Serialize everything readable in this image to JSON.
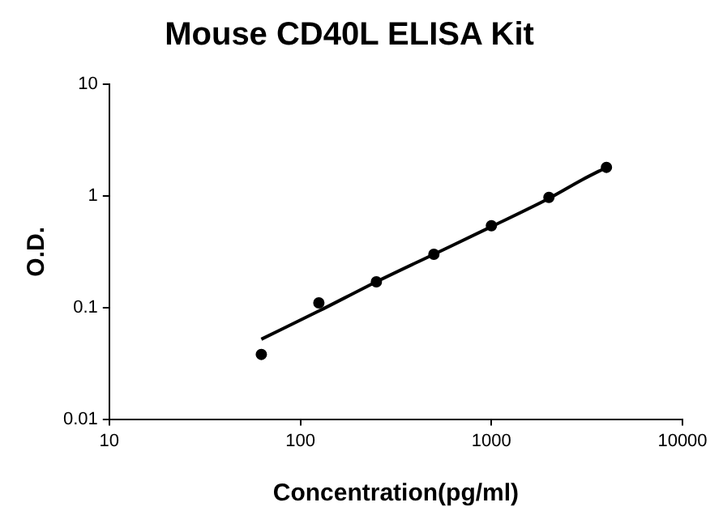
{
  "chart_data": {
    "type": "scatter",
    "title": "Mouse CD40L ELISA Kit",
    "xlabel": "Concentration(pg/ml)",
    "ylabel": "O.D.",
    "log": "xy",
    "xlim": [
      10,
      10000
    ],
    "ylim": [
      0.01,
      10
    ],
    "xticks": [
      10,
      100,
      1000,
      10000
    ],
    "yticks": [
      0.01,
      0.1,
      1,
      10
    ],
    "grid": false,
    "legend": false,
    "marker": "circle",
    "series": [
      {
        "type": "scatter",
        "color": "#000000",
        "x": [
          62.5,
          125,
          250,
          500,
          1000,
          2000,
          4000
        ],
        "values": [
          0.038,
          0.11,
          0.17,
          0.3,
          0.54,
          0.97,
          1.8
        ]
      },
      {
        "type": "line",
        "color": "#000000",
        "marker": "none",
        "line_style": "solid",
        "x": [
          62.5,
          125,
          250,
          500,
          1000,
          2000,
          3000,
          4000
        ],
        "values": [
          0.052,
          0.093,
          0.17,
          0.3,
          0.53,
          0.95,
          1.4,
          1.8
        ]
      }
    ]
  }
}
